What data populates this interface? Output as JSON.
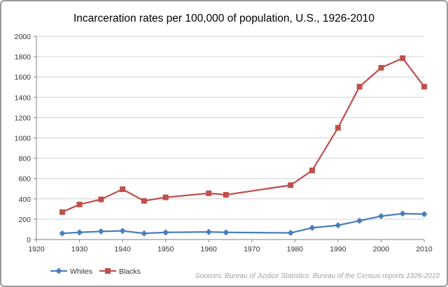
{
  "chart_data": {
    "type": "line",
    "title": "Incarceration rates per 100,000 of population, U.S., 1926-2010",
    "xlabel": "",
    "ylabel": "",
    "xlim": [
      1920,
      2010
    ],
    "ylim": [
      0,
      2000
    ],
    "x_ticks": [
      1920,
      1930,
      1940,
      1950,
      1960,
      1970,
      1980,
      1990,
      2000,
      2010
    ],
    "y_ticks": [
      0,
      200,
      400,
      600,
      800,
      1000,
      1200,
      1400,
      1600,
      1800,
      2000
    ],
    "grid": "horizontal",
    "legend_position": "bottom-left",
    "series": [
      {
        "name": "Whites",
        "color": "#4a7ebb",
        "marker": "diamond",
        "x": [
          1926,
          1930,
          1935,
          1940,
          1945,
          1950,
          1960,
          1964,
          1979,
          1984,
          1990,
          1995,
          2000,
          2005,
          2010
        ],
        "y": [
          60,
          70,
          80,
          85,
          60,
          70,
          75,
          70,
          65,
          115,
          140,
          185,
          230,
          255,
          250
        ]
      },
      {
        "name": "Blacks",
        "color": "#c0504d",
        "marker": "square",
        "x": [
          1926,
          1930,
          1935,
          1940,
          1945,
          1950,
          1960,
          1964,
          1979,
          1984,
          1990,
          1995,
          2000,
          2005,
          2010
        ],
        "y": [
          270,
          345,
          395,
          495,
          380,
          415,
          455,
          440,
          535,
          680,
          1100,
          1505,
          1690,
          1785,
          1505
        ]
      }
    ],
    "source": "Sources: Bureau of Justice Statistics. Bureau of the Census reports 1926-2010"
  }
}
